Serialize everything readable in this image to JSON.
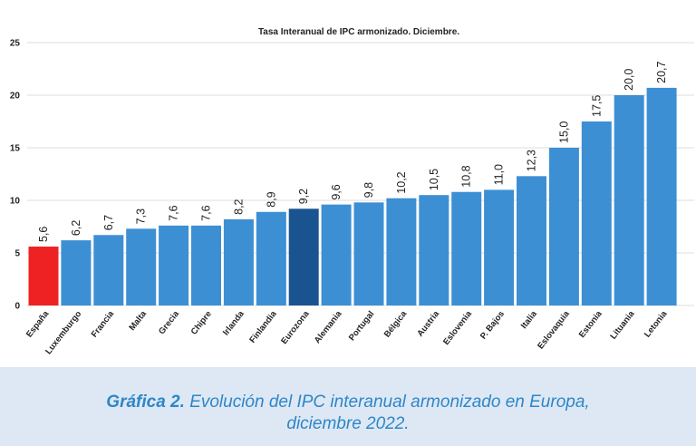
{
  "chart_data": {
    "type": "bar",
    "title": "Tasa Interanual de IPC armonizado. Diciembre.",
    "categories": [
      "España",
      "Luxemburgo",
      "Francia",
      "Malta",
      "Grecia",
      "Chipre",
      "Irlanda",
      "Finlandia",
      "Eurozona",
      "Alemania",
      "Portugal",
      "Bélgica",
      "Austria",
      "Eslovenia",
      "P. Bajos",
      "Italia",
      "Eslovaquia",
      "Estonia",
      "Lituania",
      "Letonia"
    ],
    "values": [
      5.6,
      6.2,
      6.7,
      7.3,
      7.6,
      7.6,
      8.2,
      8.9,
      9.2,
      9.6,
      9.8,
      10.2,
      10.5,
      10.8,
      11.0,
      12.3,
      15.0,
      17.5,
      20.0,
      20.7
    ],
    "data_labels": [
      "5,6",
      "6,2",
      "6,7",
      "7,3",
      "7,6",
      "7,6",
      "8,2",
      "8,9",
      "9,2",
      "9,6",
      "9,8",
      "10,2",
      "10,5",
      "10,8",
      "11,0",
      "12,3",
      "15,0",
      "17,5",
      "20,0",
      "20,7"
    ],
    "ylim": [
      0,
      25
    ],
    "yticks": [
      "0",
      "5",
      "10",
      "15",
      "20",
      "25"
    ],
    "xlabel": "",
    "ylabel": "",
    "grid": true,
    "colors": {
      "default": "#3d8fd4",
      "España": "#ee2222",
      "Eurozona": "#1a5490"
    }
  },
  "caption": {
    "label": "Gráfica 2.",
    "text_line1": "Evolución del IPC interanual armonizado en Europa,",
    "text_line2": "diciembre 2022."
  },
  "colors": {
    "caption_bg": "#dde8f4",
    "caption_text": "#2e86c8"
  }
}
